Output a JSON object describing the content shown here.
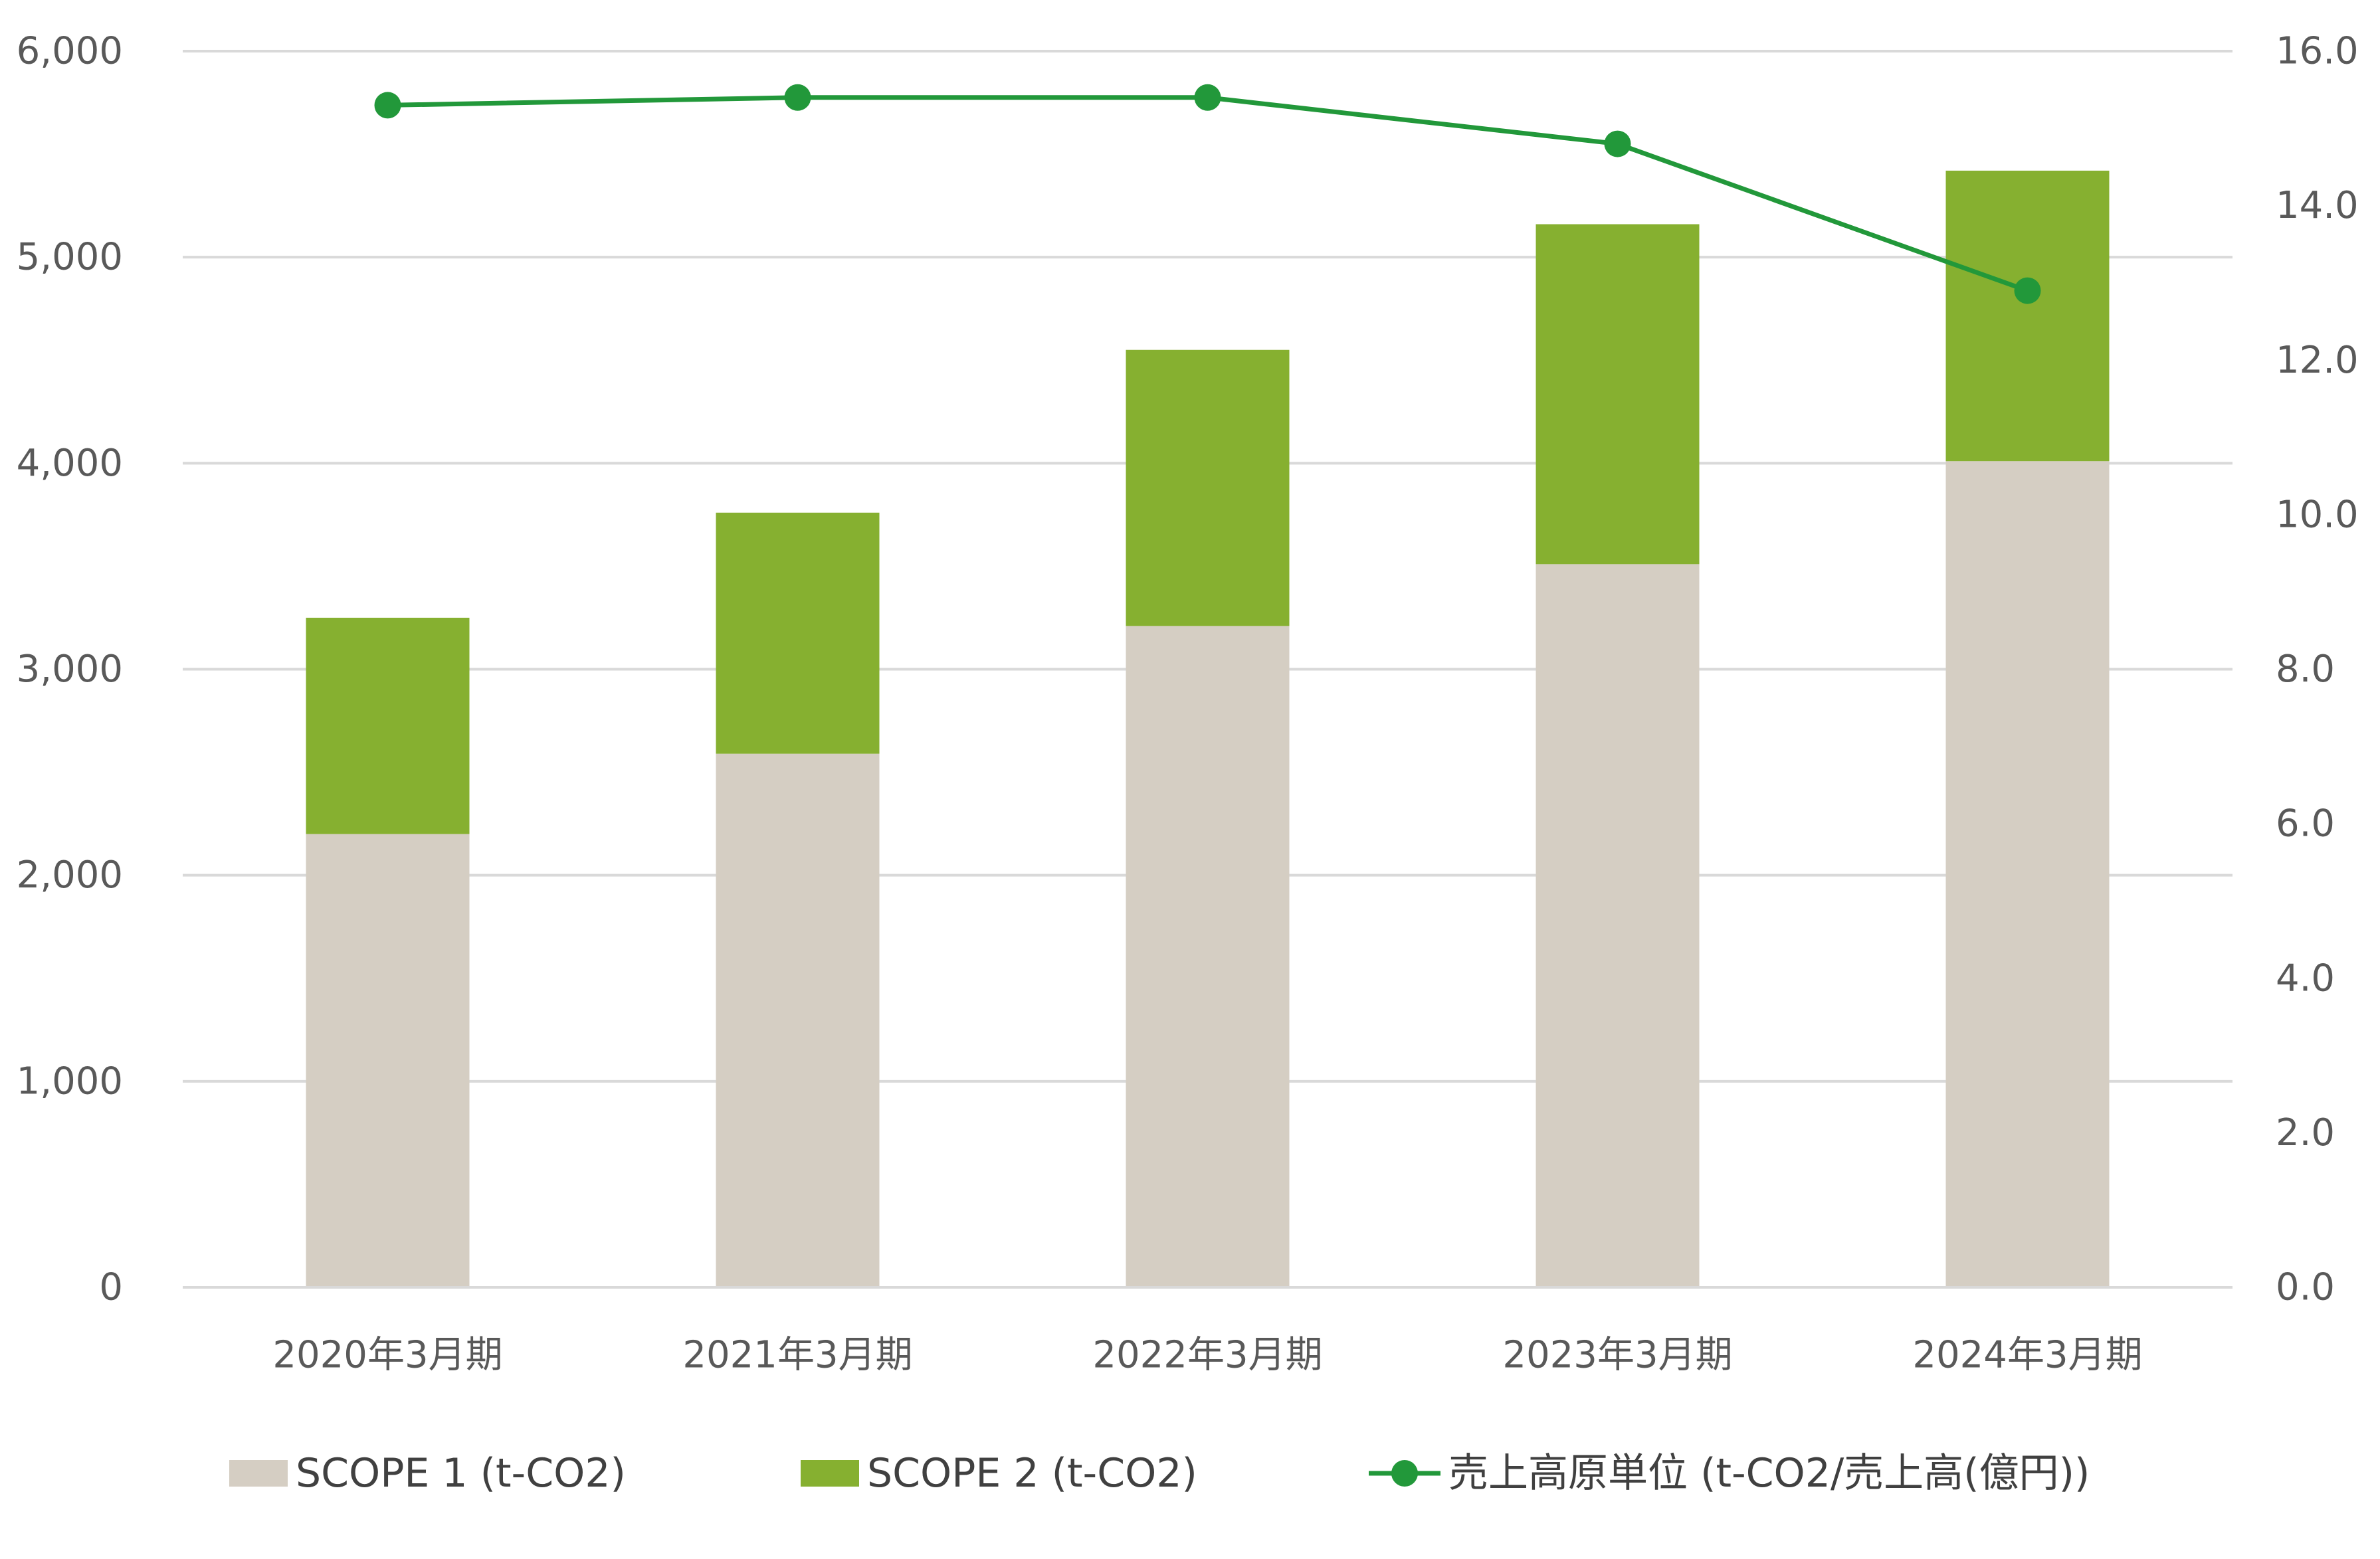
{
  "chart_data": {
    "type": "bar",
    "stacked": true,
    "categories": [
      "2020年3月期",
      "2021年3月期",
      "2022年3月期",
      "2023年3月期",
      "2024年3月期"
    ],
    "series": [
      {
        "name": "SCOPE 1 (t-CO2)",
        "type": "bar",
        "axis": "left",
        "color": "#d5cec3",
        "values": [
          2200,
          2590,
          3210,
          3510,
          4010
        ]
      },
      {
        "name": "SCOPE 2 (t-CO2)",
        "type": "bar",
        "axis": "left",
        "color": "#86b030",
        "values": [
          1050,
          1170,
          1340,
          1650,
          1410
        ]
      },
      {
        "name": "売上高原単位 (t-CO2/売上高(億円))",
        "type": "line",
        "axis": "right",
        "color": "#22983a",
        "marker": "circle",
        "values": [
          15.3,
          15.4,
          15.4,
          14.8,
          12.9
        ]
      }
    ],
    "y_left": {
      "ylim": [
        0,
        6000
      ],
      "ticks": [
        "0",
        "1,000",
        "2,000",
        "3,000",
        "4,000",
        "5,000",
        "6,000"
      ]
    },
    "y_right": {
      "ylim": [
        0,
        16
      ],
      "ticks": [
        "0.0",
        "2.0",
        "4.0",
        "6.0",
        "8.0",
        "10.0",
        "12.0",
        "14.0",
        "16.0"
      ]
    },
    "grid": true,
    "legend": "bottom",
    "gridline_color": "#d9d9d9"
  }
}
